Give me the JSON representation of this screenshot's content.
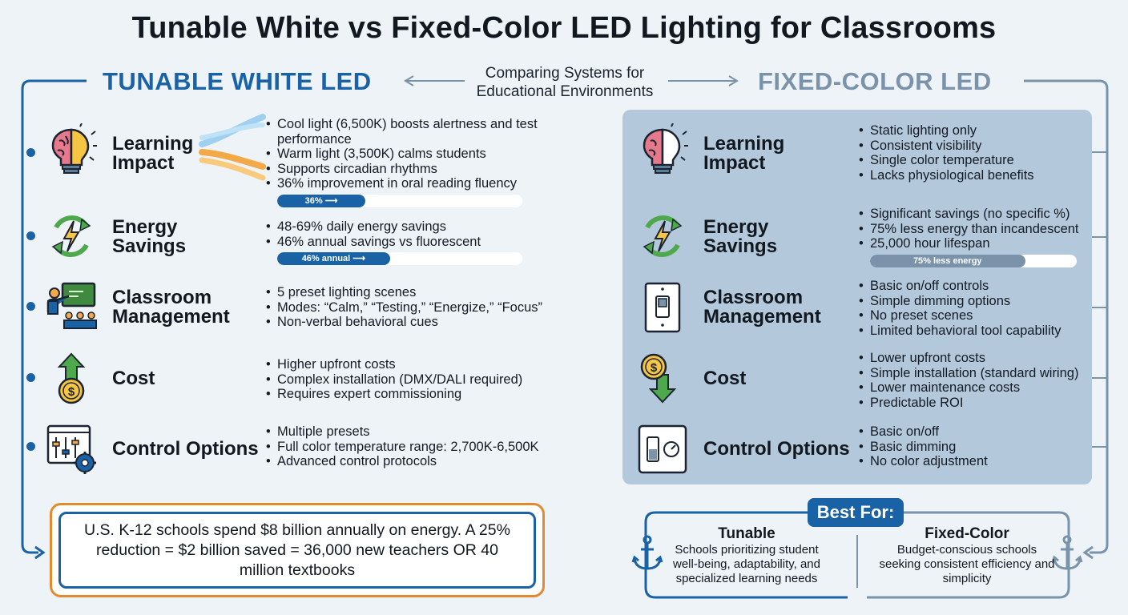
{
  "title": "Tunable White vs Fixed-Color LED Lighting for Classrooms",
  "subtitle": "Comparing Systems for Educational Environments",
  "colors": {
    "blue": "#1a62a6",
    "slate": "#7a93ab",
    "orange": "#e48a2e",
    "panel": "#b3c8da",
    "green": "#4ea94c"
  },
  "tunable": {
    "heading": "TUNABLE WHITE LED",
    "rows": [
      {
        "label": "Learning Impact",
        "icon": "brain-bulb-icon",
        "bullets": [
          "Cool light (6,500K) boosts alertness and test performance",
          "Warm light (3,500K) calms students",
          "Supports circadian rhythms",
          "36% improvement in oral reading fluency"
        ],
        "bar": {
          "text": "36%",
          "value": 0.36
        }
      },
      {
        "label": "Energy Savings",
        "icon": "energy-cycle-icon",
        "bullets": [
          "48-69% daily energy savings",
          "46% annual savings vs fluorescent"
        ],
        "bar": {
          "text": "46% annual",
          "value": 0.46
        }
      },
      {
        "label": "Classroom Management",
        "icon": "teacher-board-icon",
        "bullets": [
          "5 preset lighting scenes",
          "Modes: “Calm,” “Testing,” “Energize,” “Focus”",
          "Non-verbal behavioral cues"
        ]
      },
      {
        "label": "Cost",
        "icon": "coin-arrow-up-icon",
        "bullets": [
          "Higher upfront costs",
          "Complex installation (DMX/DALI required)",
          "Requires expert commissioning"
        ]
      },
      {
        "label": "Control Options",
        "icon": "control-panel-gear-icon",
        "bullets": [
          "Multiple presets",
          "Full color temperature range: 2,700K-6,500K",
          "Advanced control protocols"
        ]
      }
    ]
  },
  "fixed": {
    "heading": "FIXED-COLOR LED",
    "rows": [
      {
        "label": "Learning Impact",
        "icon": "brain-bulb-icon",
        "bullets": [
          "Static lighting only",
          "Consistent visibility",
          "Single color temperature",
          "Lacks physiological benefits"
        ]
      },
      {
        "label": "Energy Savings",
        "icon": "energy-cycle-icon",
        "bullets": [
          "Significant savings (no specific %)",
          "75% less energy than incandescent",
          "25,000 hour lifespan"
        ],
        "bar": {
          "text": "75% less energy",
          "value": 0.75
        }
      },
      {
        "label": "Classroom Management",
        "icon": "light-switch-icon",
        "bullets": [
          "Basic on/off controls",
          "Simple dimming options",
          "No preset scenes",
          "Limited behavioral tool capability"
        ]
      },
      {
        "label": "Cost",
        "icon": "coin-arrow-down-icon",
        "bullets": [
          "Lower upfront costs",
          "Simple installation (standard wiring)",
          "Lower maintenance costs",
          "Predictable ROI"
        ]
      },
      {
        "label": "Control Options",
        "icon": "dimmer-switch-icon",
        "bullets": [
          "Basic on/off",
          "Basic dimming",
          "No color adjustment"
        ]
      }
    ]
  },
  "callout": {
    "text": "U.S. K-12 schools spend $8 billion annually on energy. A 25% reduction = $2 billion saved = 36,000 new teachers OR 40 million textbooks"
  },
  "best_for": {
    "tag": "Best For:",
    "tunable": {
      "heading": "Tunable",
      "text": "Schools prioritizing student well-being, adaptability, and specialized learning needs"
    },
    "fixed": {
      "heading": "Fixed-Color",
      "text": "Budget-conscious schools seeking consistent efficiency and simplicity"
    }
  }
}
